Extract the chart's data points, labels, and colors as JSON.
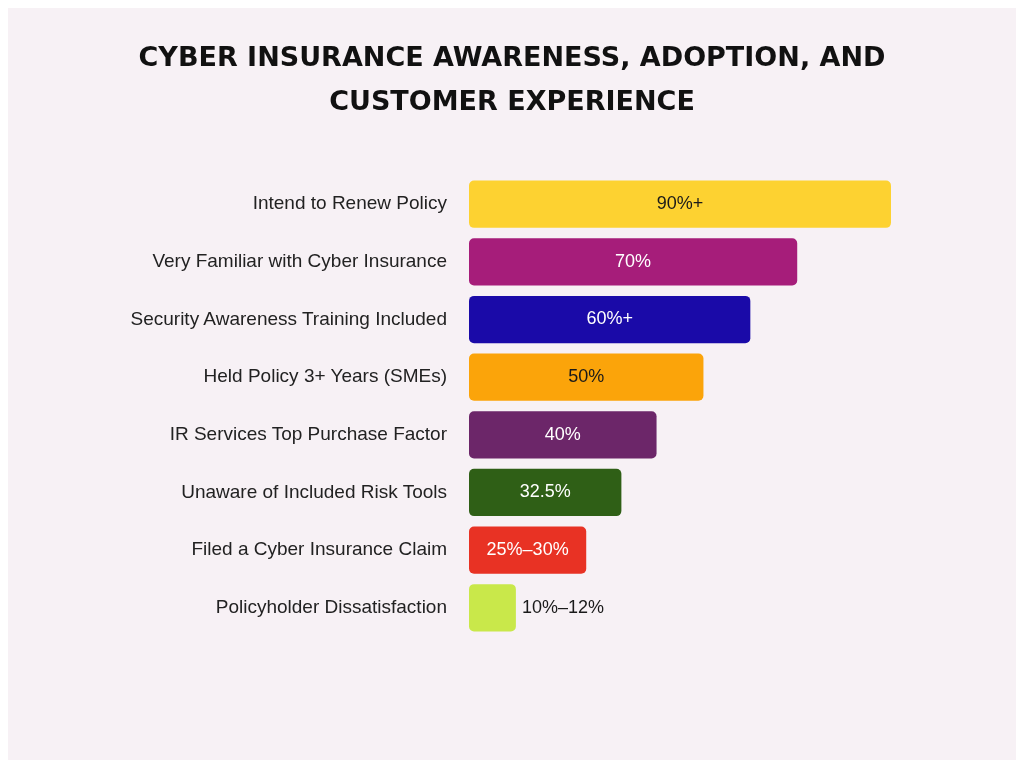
{
  "chart_data": {
    "type": "bar",
    "orientation": "horizontal",
    "title": "CYBER INSURANCE AWARENESS, ADOPTION, AND CUSTOMER EXPERIENCE",
    "categories": [
      "Intend to Renew Policy",
      "Very Familiar with Cyber Insurance",
      "Security Awareness Training Included",
      "Held Policy 3+ Years (SMEs)",
      "IR Services Top Purchase Factor",
      "Unaware of Included Risk Tools",
      "Filed a Cyber Insurance Claim",
      "Policyholder Dissatisfaction"
    ],
    "values": [
      90,
      70,
      60,
      50,
      40,
      32.5,
      25,
      10
    ],
    "value_labels": [
      "90%+",
      "70%",
      "60%+",
      "50%",
      "40%",
      "32.5%",
      "25%–30%",
      "10%–12%"
    ],
    "colors": [
      "#fdd231",
      "#a61d7a",
      "#1a0aa8",
      "#fba40a",
      "#6c2669",
      "#2f5f16",
      "#e83224",
      "#c9e84a"
    ],
    "legend": false
  }
}
